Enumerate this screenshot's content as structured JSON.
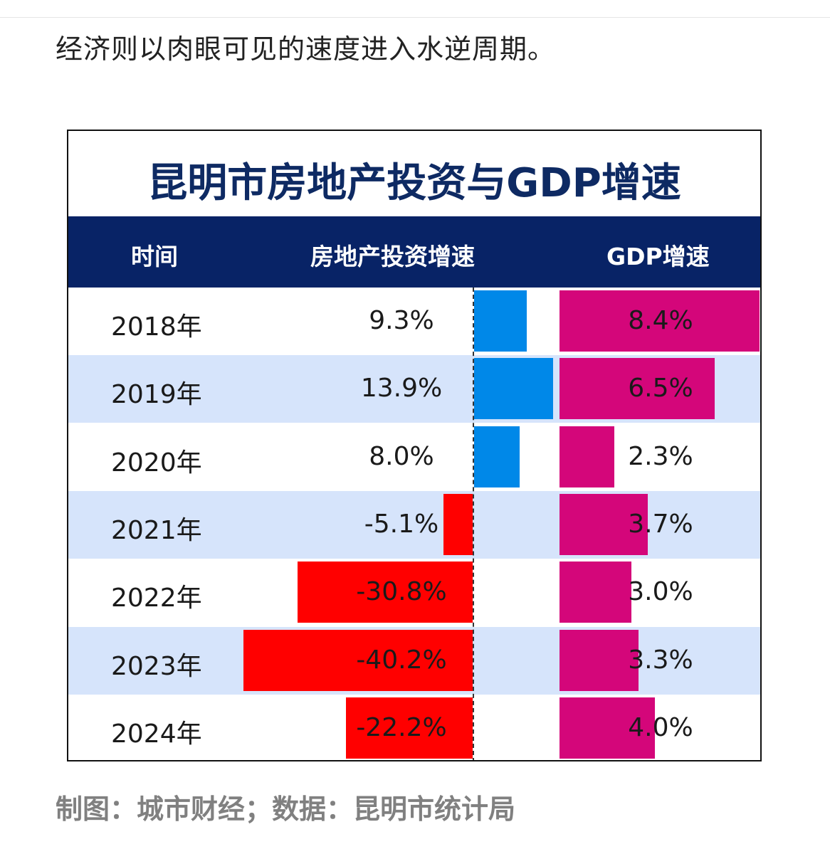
{
  "intro_text": "经济则以肉眼可见的速度进入水逆周期。",
  "footer_text": "制图：城市财经；数据：昆明市统计局",
  "colors": {
    "header_bg": "#082366",
    "title": "#0e2a63",
    "positive": "#0088e8",
    "negative": "#ff0000",
    "gdp": "#d4067a",
    "alt_row": "#d6e4fb"
  },
  "chart_data": {
    "type": "table",
    "title": "昆明市房地产投资与GDP增速",
    "columns": [
      "时间",
      "房地产投资增速",
      "GDP增速"
    ],
    "categories": [
      "2018年",
      "2019年",
      "2020年",
      "2021年",
      "2022年",
      "2023年",
      "2024年"
    ],
    "series": [
      {
        "name": "房地产投资增速",
        "values": [
          9.3,
          13.9,
          8.0,
          -5.1,
          -30.8,
          -40.2,
          -22.2
        ],
        "labels": [
          "9.3%",
          "13.9%",
          "8.0%",
          "-5.1%",
          "-30.8%",
          "-40.2%",
          "-22.2%"
        ]
      },
      {
        "name": "GDP增速",
        "values": [
          8.4,
          6.5,
          2.3,
          3.7,
          3.0,
          3.3,
          4.0
        ],
        "labels": [
          "8.4%",
          "6.5%",
          "2.3%",
          "3.7%",
          "3.0%",
          "3.3%",
          "4.0%"
        ]
      }
    ]
  }
}
